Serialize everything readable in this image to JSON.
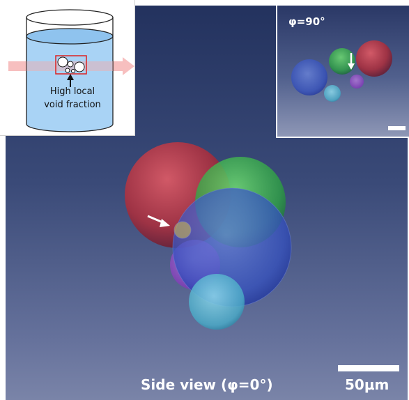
{
  "main_view": {
    "label": "Side view (φ=0°)",
    "scale_label": "50μm"
  },
  "top_view_inset": {
    "label": "φ=90°"
  },
  "schematic_inset": {
    "text_line1": "High local",
    "text_line2": "void fraction"
  },
  "colors": {
    "red_bubble": "#c8374a",
    "green_bubble": "#3fbf4f",
    "blue_bubble": "#3d56c6",
    "cyan_bubble": "#4fb6cf",
    "purple_bubble": "#9b49c9",
    "water": "#a9d3f5",
    "flow_arrow": "#f4a9a9"
  }
}
